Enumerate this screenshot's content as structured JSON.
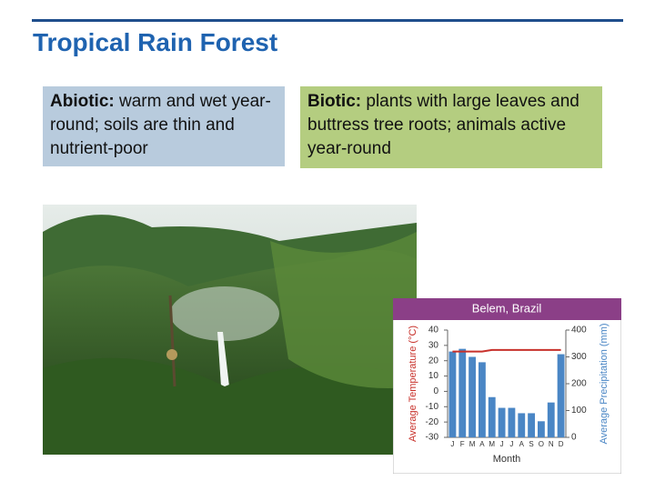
{
  "title": "Tropical Rain Forest",
  "boxes": [
    {
      "label": "Abiotic:",
      "text": "warm and wet year-round; soils are thin and nutrient-poor"
    },
    {
      "label": "Biotic:",
      "text": "plants with large leaves and buttress tree roots; animals active year-round"
    }
  ],
  "chart_data": {
    "type": "bar",
    "title": "Belem, Brazil",
    "categories": [
      "J",
      "F",
      "M",
      "A",
      "M",
      "J",
      "J",
      "A",
      "S",
      "O",
      "N",
      "D"
    ],
    "xlabel": "Month",
    "ylabel": "Average Temperature (°C)",
    "y2label": "Average Precipitation (mm)",
    "ylim": [
      -30,
      40
    ],
    "yticks": [
      40,
      30,
      20,
      10,
      0,
      -10,
      -20,
      -30
    ],
    "y2lim": [
      0,
      400
    ],
    "y2ticks": [
      400,
      300,
      200,
      100,
      0
    ],
    "series": [
      {
        "type": "line",
        "color": "#c8312b",
        "values": [
          26,
          26,
          26,
          26,
          27,
          27,
          27,
          27,
          27,
          27,
          27,
          27
        ]
      },
      {
        "axis": "y2",
        "color": "#4a86c5",
        "values": [
          320,
          330,
          300,
          280,
          150,
          110,
          110,
          90,
          90,
          60,
          130,
          310
        ]
      }
    ]
  }
}
